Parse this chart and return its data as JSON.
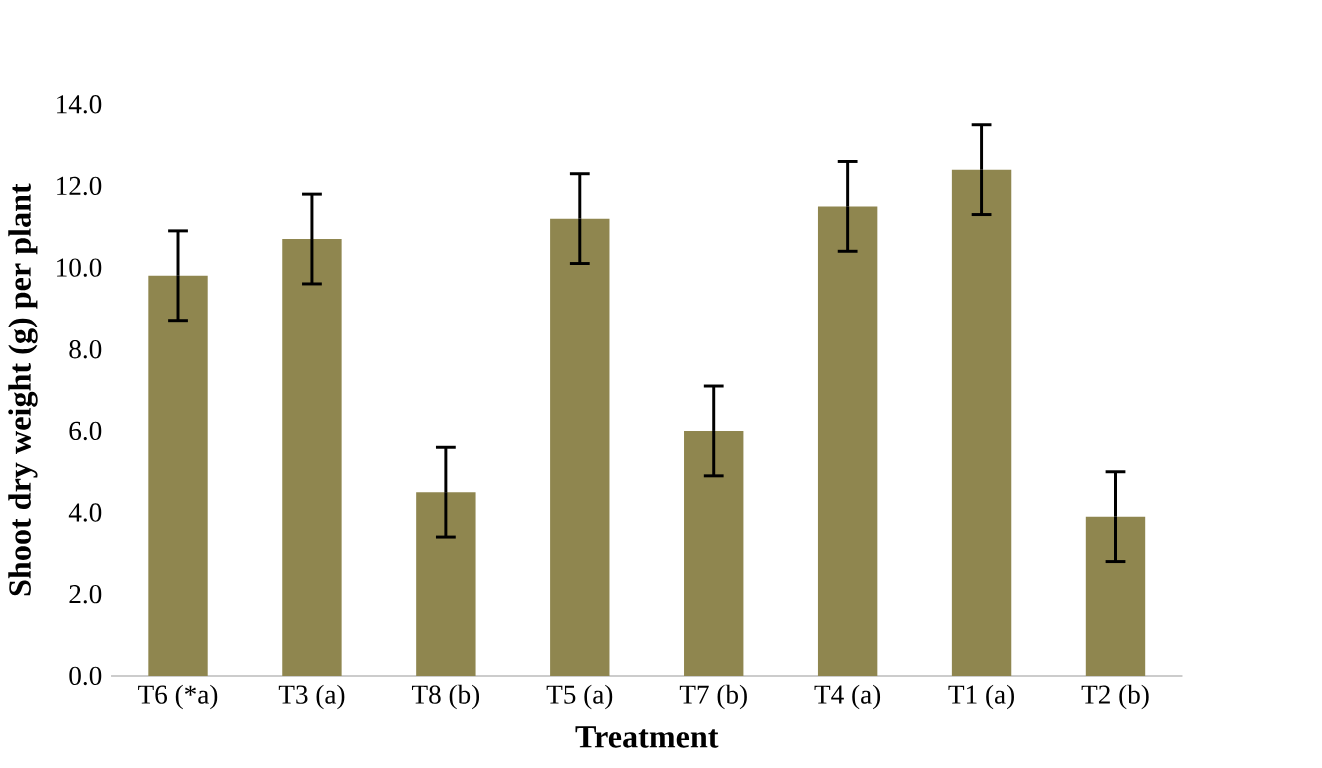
{
  "chart_data": {
    "type": "bar",
    "xlabel": "Treatment",
    "ylabel": "Shoot dry weight (g) per plant",
    "categories": [
      "T6 (*a)",
      "T3 (a)",
      "T8 (b)",
      "T5 (a)",
      "T7 (b)",
      "T4 (a)",
      "T1 (a)",
      "T2 (b)"
    ],
    "values": [
      9.8,
      10.7,
      4.5,
      11.2,
      6.0,
      11.5,
      12.4,
      3.9
    ],
    "errors": [
      1.1,
      1.1,
      1.1,
      1.1,
      1.1,
      1.1,
      1.1,
      1.1
    ],
    "color": "#8f864f",
    "ylim": [
      0,
      14
    ],
    "yticks": [
      {
        "value": 0,
        "label": "0.0"
      },
      {
        "value": 2,
        "label": "2.0"
      },
      {
        "value": 4,
        "label": "4.0"
      },
      {
        "value": 6,
        "label": "6.0"
      },
      {
        "value": 8,
        "label": "8.0"
      },
      {
        "value": 10,
        "label": "10.0"
      },
      {
        "value": 12,
        "label": "12.0"
      },
      {
        "value": 14,
        "label": "14.0"
      }
    ],
    "grid": false
  }
}
